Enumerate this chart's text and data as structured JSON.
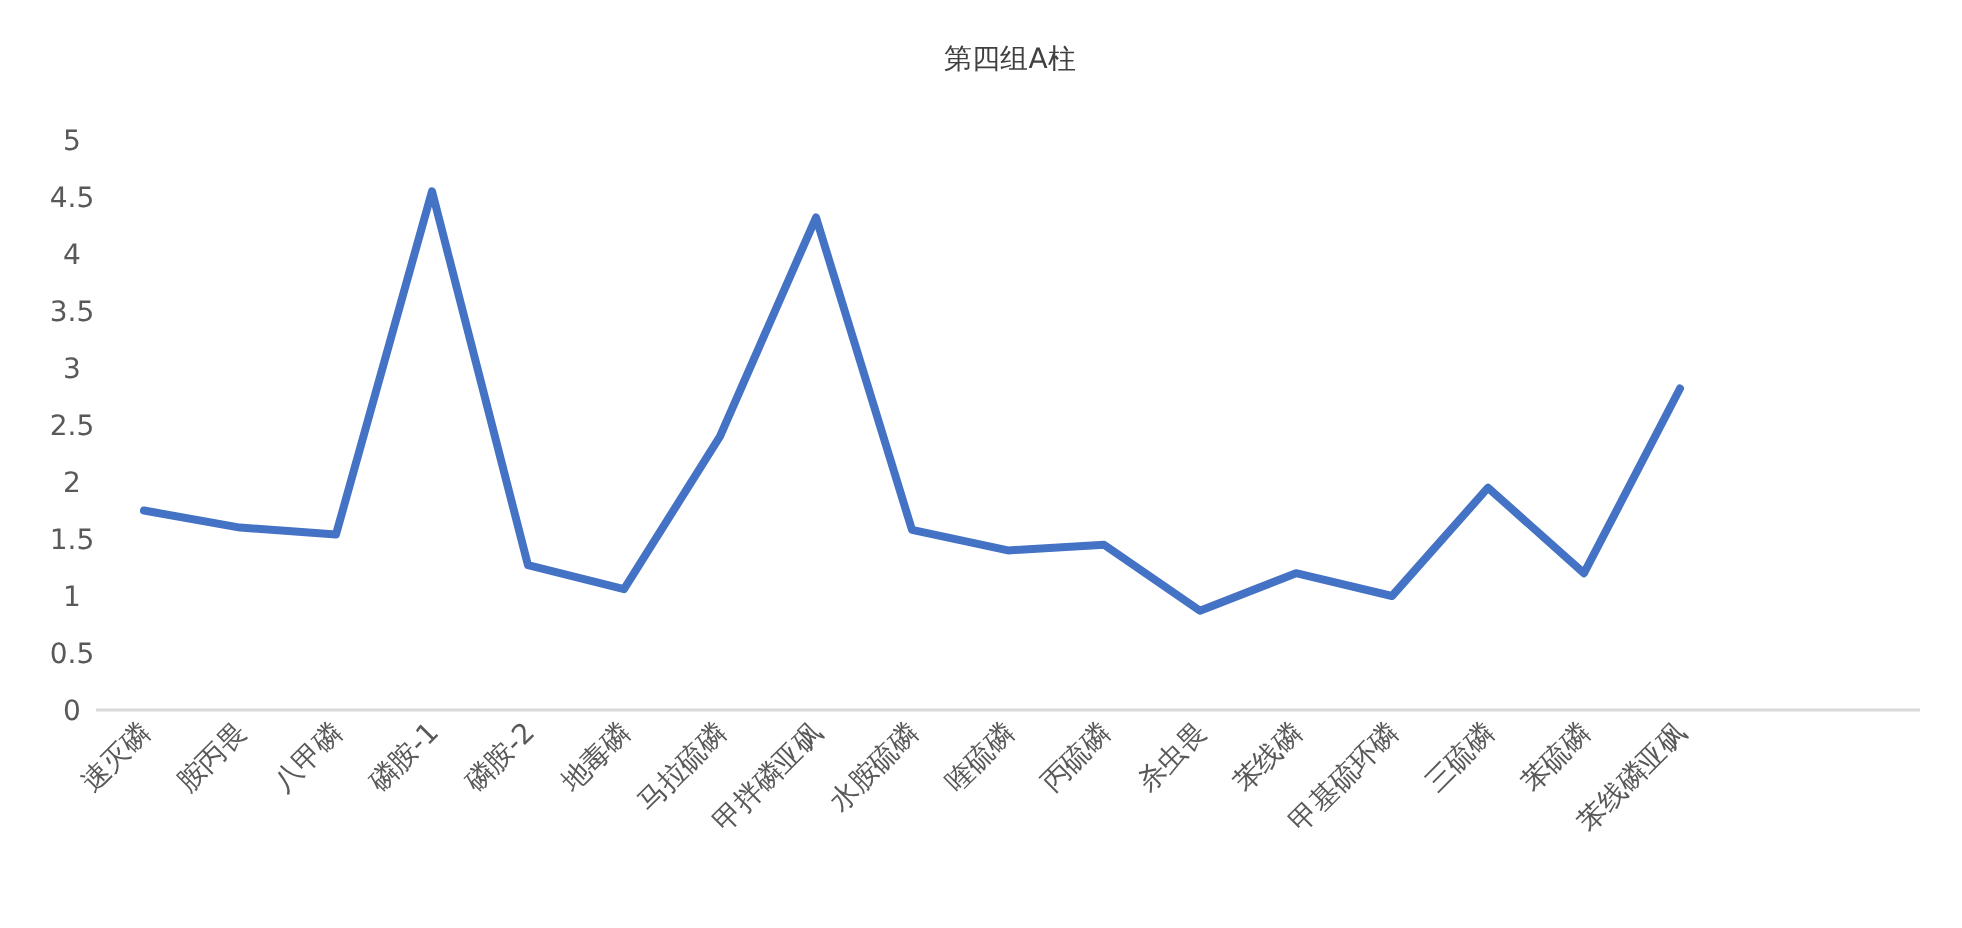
{
  "chart_data": {
    "type": "line",
    "title": "第四组A柱",
    "categories": [
      "速灭磷",
      "胺丙畏",
      "八甲磷",
      "磷胺-1",
      "磷胺-2",
      "地毒磷",
      "马拉硫磷",
      "甲拌磷亚砜",
      "水胺硫磷",
      "喹硫磷",
      "丙硫磷",
      "杀虫畏",
      "苯线磷",
      "甲基硫环磷",
      "三硫磷",
      "苯硫磷",
      "苯线磷亚砜",
      null,
      null
    ],
    "values": [
      1.75,
      1.6,
      1.54,
      4.55,
      1.27,
      1.06,
      2.4,
      4.32,
      1.58,
      1.4,
      1.45,
      0.87,
      1.2,
      1.0,
      1.95,
      1.2,
      2.82,
      null,
      null
    ],
    "color": "#4472c4",
    "ylim": [
      0,
      5
    ],
    "yticks": [
      0,
      0.5,
      1,
      1.5,
      2,
      2.5,
      3,
      3.5,
      4,
      4.5,
      5
    ]
  }
}
